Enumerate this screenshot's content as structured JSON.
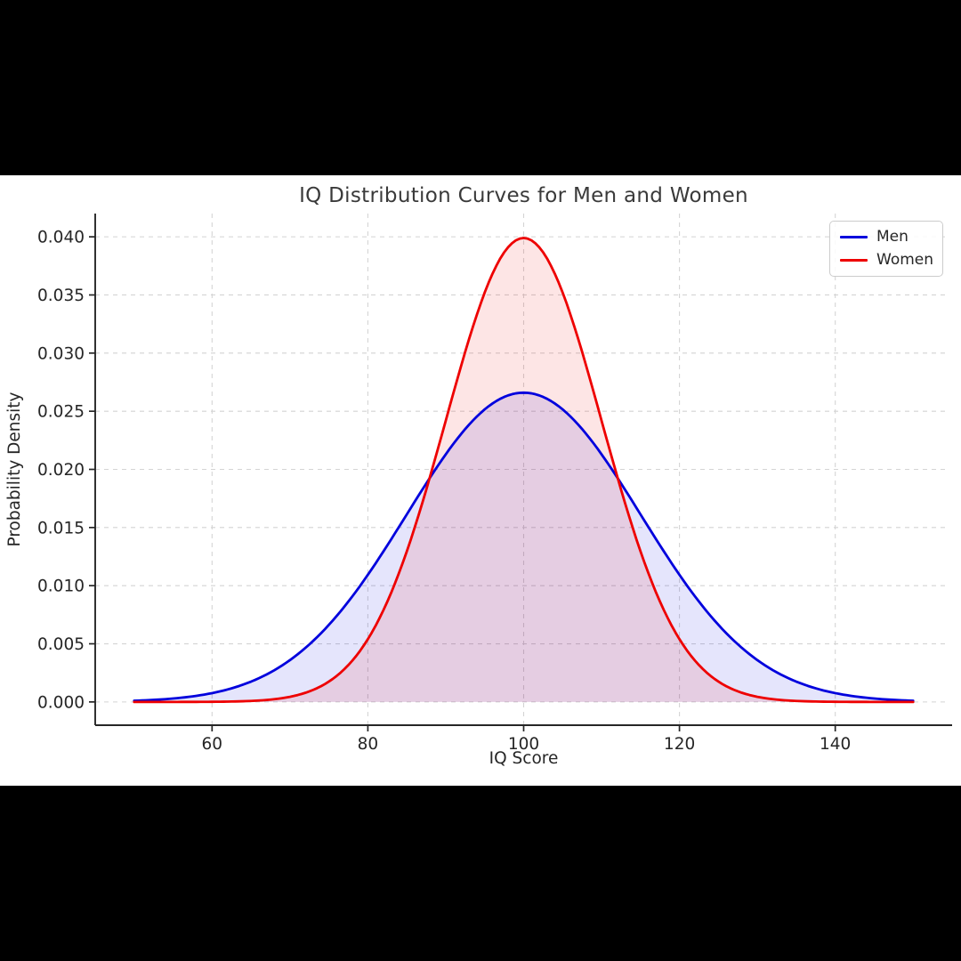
{
  "page": {
    "letterbox_color": "#000000",
    "figure_background": "#ffffff",
    "text_color": "#262626",
    "title_color": "#3a3a3a",
    "grid_color": "#d4d4d4",
    "spine_color": "#262626"
  },
  "chart_data": {
    "type": "area",
    "title": "IQ Distribution Curves for Men and Women",
    "xlabel": "IQ Score",
    "ylabel": "Probability Density",
    "xlim": [
      45,
      155
    ],
    "ylim": [
      -0.002,
      0.042
    ],
    "xticks": [
      60,
      80,
      100,
      120,
      140
    ],
    "yticks": [
      0.0,
      0.005,
      0.01,
      0.015,
      0.02,
      0.025,
      0.03,
      0.035,
      0.04
    ],
    "ytick_decimals": 3,
    "grid": {
      "visible": true,
      "style": "dashed",
      "color": "#d4d4d4"
    },
    "legend": {
      "position": "upper right",
      "entries": [
        {
          "label": "Men",
          "color": "#0000dd"
        },
        {
          "label": "Women",
          "color": "#ee0000"
        }
      ]
    },
    "series": [
      {
        "name": "Men",
        "distribution": "normal",
        "mean": 100,
        "sd": 15,
        "peak_density": 0.0266,
        "x_range": [
          50,
          150
        ],
        "color": "#0000dd",
        "fill_alpha": 0.1,
        "line_width": 2.8
      },
      {
        "name": "Women",
        "distribution": "normal",
        "mean": 100,
        "sd": 10,
        "peak_density": 0.0399,
        "x_range": [
          50,
          150
        ],
        "color": "#ee0000",
        "fill_alpha": 0.1,
        "line_width": 2.8
      }
    ]
  }
}
